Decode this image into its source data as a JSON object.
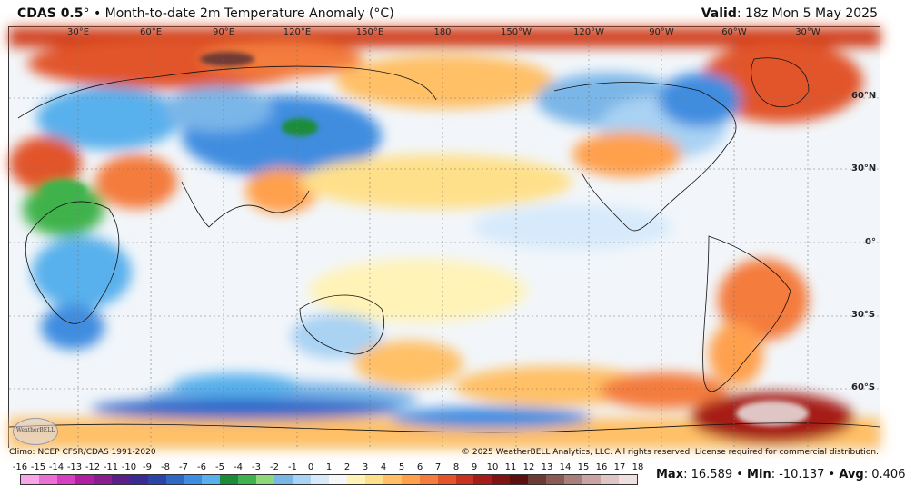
{
  "header": {
    "product": "CDAS 0.5",
    "degree": "°",
    "bullet": "•",
    "title": "Month-to-date 2m Temperature Anomaly (°C)",
    "valid_label": "Valid",
    "valid_value": ": 18z Mon 5 May 2025"
  },
  "map": {
    "projection": "cylindrical, Pacific-centered",
    "lon_labels": [
      "30°E",
      "60°E",
      "90°E",
      "120°E",
      "150°E",
      "180",
      "150°W",
      "120°W",
      "90°W",
      "60°W",
      "30°W"
    ],
    "lat_labels": [
      "60°N",
      "30°N",
      "0°",
      "30°S",
      "60°S"
    ]
  },
  "footer": {
    "climo": "Climo: NCEP CFSR/CDAS 1991-2020",
    "copyright": "© 2025 WeatherBELL Analytics, LLC. All rights reserved. License required for commercial distribution.",
    "logo": "WeatherBELL"
  },
  "colorbar": {
    "labels": [
      "-16",
      "-15",
      "-14",
      "-13",
      "-12",
      "-11",
      "-10",
      "-9",
      "-8",
      "-7",
      "-6",
      "-5",
      "-4",
      "-3",
      "-2",
      "-1",
      "0",
      "1",
      "2",
      "3",
      "4",
      "5",
      "6",
      "7",
      "8",
      "9",
      "10",
      "11",
      "12",
      "13",
      "14",
      "15",
      "16",
      "17",
      "18"
    ],
    "colors": [
      "#f7a6e8",
      "#ec6fd6",
      "#d63fc0",
      "#b01fa3",
      "#8a1e8e",
      "#5c1f8a",
      "#3b2a93",
      "#2c44a8",
      "#2f67c9",
      "#3f8de0",
      "#58b0ec",
      "#1a8c3a",
      "#3fb24c",
      "#8fd87a",
      "#7ab6e8",
      "#a9d2f3",
      "#d7eafb",
      "#f7f7f7",
      "#fff3b8",
      "#ffe08a",
      "#ffc066",
      "#ffa04d",
      "#f47c3c",
      "#e2552b",
      "#c8321f",
      "#a61c18",
      "#7e1414",
      "#5a1010",
      "#6e3a36",
      "#8a5a55",
      "#a97f7b",
      "#c8a5a2",
      "#dfc6c4",
      "#efe0df"
    ]
  },
  "stats": {
    "max_label": "Max",
    "max_value": ": 16.589",
    "min_label": "Min",
    "min_value": ": -10.137",
    "avg_label": "Avg",
    "avg_value": ": 0.406",
    "sep": " • "
  }
}
